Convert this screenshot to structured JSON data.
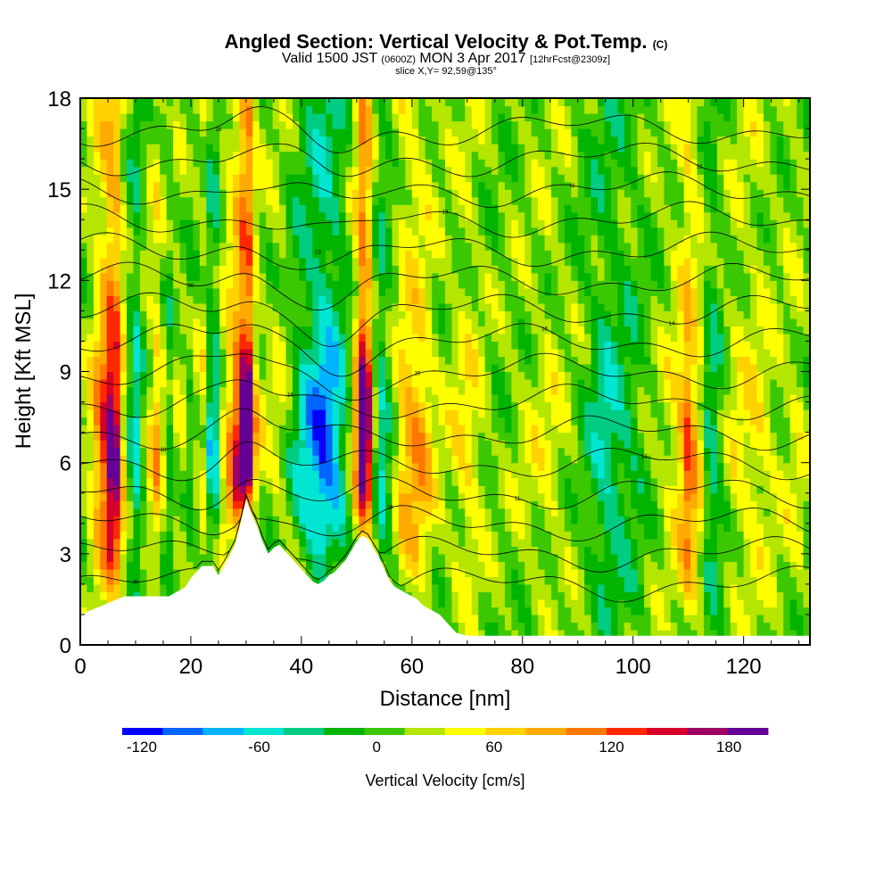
{
  "chart_data": {
    "type": "heatmap",
    "title": "Angled Section: Vertical Velocity & Pot.Temp.",
    "title_mark": "(C)",
    "subtitle": {
      "valid_prefix": "Valid 1500 JST",
      "utc": "(0600Z)",
      "date": "MON 3 Apr 2017",
      "forecast": "[12hrFcst@2309z]"
    },
    "slice_label": "slice X,Y= 92,59@135°",
    "xlabel": "Distance [nm]",
    "ylabel": "Height [Kft MSL]",
    "xlim": [
      0,
      132
    ],
    "ylim": [
      0,
      18
    ],
    "x_ticks": [
      "0",
      "20",
      "40",
      "60",
      "80",
      "100",
      "120"
    ],
    "y_ticks": [
      "0",
      "3",
      "6",
      "9",
      "12",
      "15",
      "18"
    ],
    "colorbar": {
      "label": "Vertical Velocity [cm/s]",
      "ticks": [
        "-120",
        "-60",
        "0",
        "60",
        "120",
        "180"
      ],
      "range": [
        -130,
        200
      ],
      "step": 20,
      "colors": [
        "#0000ff",
        "#0064ff",
        "#00b4ff",
        "#00e6d2",
        "#00cd82",
        "#00b400",
        "#3cc800",
        "#b4e600",
        "#ffff00",
        "#ffd200",
        "#ffaa00",
        "#ff7800",
        "#ff2800",
        "#d70028",
        "#a00064",
        "#640096"
      ]
    },
    "field_columns": {
      "x": [
        0,
        2,
        4,
        5,
        6,
        7,
        8,
        10,
        12,
        14,
        16,
        18,
        20,
        22,
        24,
        26,
        28,
        29,
        30,
        31,
        32,
        34,
        36,
        38,
        40,
        42,
        44,
        46,
        48,
        50,
        51,
        52,
        53,
        54,
        56,
        58,
        60,
        62,
        64,
        66,
        70,
        75,
        80,
        85,
        90,
        95,
        100,
        105,
        108,
        110,
        112,
        114,
        118,
        122,
        126,
        130,
        132
      ],
      "w": [
        0,
        30,
        80,
        110,
        150,
        90,
        20,
        -50,
        10,
        50,
        -20,
        20,
        -10,
        30,
        -60,
        30,
        80,
        120,
        170,
        130,
        20,
        10,
        20,
        -10,
        -40,
        -60,
        -80,
        -60,
        -30,
        60,
        140,
        120,
        30,
        -50,
        -10,
        40,
        60,
        50,
        20,
        10,
        30,
        0,
        10,
        20,
        0,
        -40,
        -20,
        10,
        30,
        80,
        30,
        -40,
        20,
        30,
        10,
        20,
        0
      ]
    },
    "theta_contours": [
      2,
      3,
      4,
      5,
      6,
      7,
      8,
      9,
      10,
      11,
      12,
      13,
      14,
      15,
      16,
      17
    ],
    "contour_labels": [
      "30",
      "13",
      "19",
      "11",
      "12",
      "18",
      "16",
      "20",
      "15",
      "14"
    ],
    "terrain": {
      "x": [
        0,
        4,
        8,
        12,
        16,
        19,
        20,
        21,
        22,
        24,
        25,
        26,
        28,
        29,
        30,
        31,
        32,
        33,
        34,
        35,
        36,
        37,
        38,
        39,
        40,
        41,
        42,
        43,
        44,
        45,
        46,
        47,
        48,
        49,
        50,
        51,
        52,
        53,
        54,
        55,
        56,
        57,
        58,
        59,
        60,
        61,
        62,
        63,
        64,
        65,
        66,
        67,
        68,
        70,
        72,
        132
      ],
      "h": [
        1.0,
        1.3,
        1.6,
        1.6,
        1.6,
        1.9,
        2.2,
        2.4,
        2.6,
        2.6,
        2.3,
        2.6,
        3.3,
        4.0,
        4.8,
        4.3,
        3.9,
        3.4,
        3.0,
        3.2,
        3.3,
        3.1,
        2.9,
        2.7,
        2.5,
        2.3,
        2.1,
        2.0,
        2.1,
        2.3,
        2.4,
        2.6,
        2.8,
        3.1,
        3.4,
        3.6,
        3.5,
        3.2,
        2.9,
        2.5,
        2.1,
        1.9,
        1.8,
        1.7,
        1.6,
        1.5,
        1.3,
        1.2,
        1.1,
        1.0,
        0.8,
        0.6,
        0.4,
        0.3,
        0.3,
        0.3
      ]
    }
  }
}
